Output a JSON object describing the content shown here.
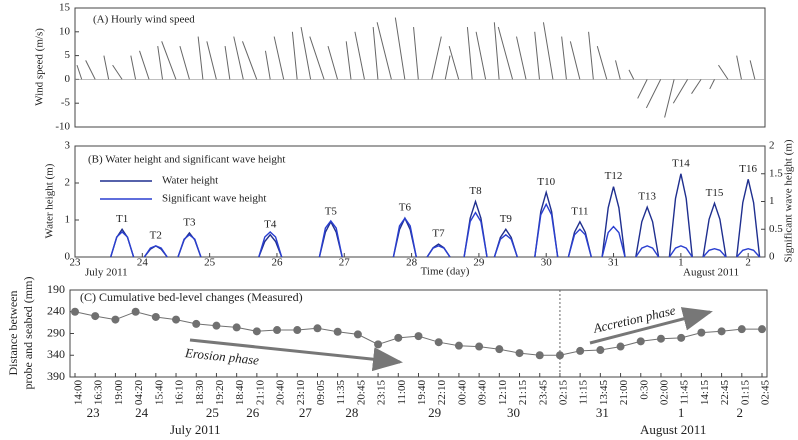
{
  "chart_data": [
    {
      "type": "stick",
      "title": "(A) Hourly wind speed",
      "ylabel": "Wind speed (m/s)",
      "x": [
        23.1,
        23.3,
        23.5,
        23.7,
        23.9,
        24.1,
        24.3,
        24.5,
        24.7,
        24.9,
        25.1,
        25.3,
        25.5,
        25.7,
        25.9,
        26.1,
        26.3,
        26.5,
        26.7,
        26.9,
        27.1,
        27.3,
        27.5,
        27.7,
        27.9,
        28.1,
        28.3,
        28.5,
        28.7,
        28.9,
        29.1,
        29.3,
        29.5,
        29.7,
        29.9,
        30.1,
        30.3,
        30.5,
        30.7,
        30.9,
        31.1,
        31.3,
        31.5,
        31.7,
        31.9,
        32.1,
        32.3,
        32.5,
        32.7,
        32.9,
        33.1
      ],
      "u": [
        -1,
        -2,
        -1,
        -2,
        -1,
        -2,
        -1,
        -3,
        -2,
        -1,
        -2,
        -1,
        -2,
        -3,
        -1,
        -2,
        -1,
        -2,
        -3,
        -2,
        -1,
        -2,
        -1,
        -3,
        -2,
        -1,
        2,
        1,
        -2,
        -1,
        -2,
        -1,
        -3,
        -2,
        -1,
        -2,
        -1,
        -2,
        -1,
        -2,
        -1,
        -1,
        -2,
        -3,
        -2,
        -3,
        -2,
        -1,
        -2,
        -1,
        -1
      ],
      "v": [
        3,
        4,
        5,
        3,
        5,
        6,
        7,
        8,
        7,
        9,
        8,
        7,
        9,
        8,
        6,
        9,
        10,
        11,
        9,
        7,
        8,
        10,
        11,
        12,
        13,
        11,
        9,
        5,
        7,
        11,
        10,
        12,
        11,
        9,
        10,
        12,
        9,
        8,
        10,
        7,
        4,
        2,
        -4,
        -6,
        -8,
        -5,
        -3,
        -2,
        3,
        5,
        4
      ],
      "color": "#666666",
      "xlim": [
        23,
        33.25
      ],
      "ylim": [
        -10,
        15
      ],
      "yticks": [
        -10,
        -5,
        0,
        5,
        10,
        15
      ]
    },
    {
      "type": "line",
      "title": "(B) Water height and significant wave height",
      "ylabel": "Water height (m)",
      "y2label": "Significant wave height (m)",
      "xlabel": "Time (day)",
      "month_labels": [
        "July 2011",
        "August 2011"
      ],
      "x": [
        23.53,
        23.62,
        23.7,
        23.78,
        23.87,
        23.95,
        24.03,
        24.12,
        24.2,
        24.28,
        24.37,
        24.45,
        24.53,
        24.62,
        24.7,
        24.78,
        24.87,
        24.95,
        25.73,
        25.82,
        25.9,
        25.98,
        26.07,
        26.15,
        26.63,
        26.72,
        26.8,
        26.88,
        26.97,
        27.05,
        27.73,
        27.82,
        27.9,
        27.98,
        28.07,
        28.15,
        28.23,
        28.32,
        28.4,
        28.48,
        28.57,
        28.65,
        28.78,
        28.87,
        28.95,
        29.03,
        29.12,
        29.2,
        29.23,
        29.32,
        29.4,
        29.48,
        29.57,
        29.65,
        29.83,
        29.92,
        30,
        30.08,
        30.17,
        30.25,
        30.33,
        30.42,
        30.5,
        30.58,
        30.67,
        30.75,
        30.83,
        30.92,
        31,
        31.08,
        31.17,
        31.25,
        31.33,
        31.42,
        31.5,
        31.58,
        31.67,
        31.75,
        31.83,
        31.92,
        32,
        32.08,
        32.17,
        32.25,
        32.33,
        32.42,
        32.5,
        32.58,
        32.67,
        32.75,
        32.83,
        32.92,
        33,
        33.08,
        33.17
      ],
      "series": [
        {
          "name": "Water height",
          "color": "#1f2f8f",
          "values": [
            0,
            0.53,
            0.75,
            0.53,
            0,
            null,
            0,
            0.21,
            0.3,
            0.21,
            0,
            null,
            0,
            0.46,
            0.65,
            0.46,
            0,
            null,
            0,
            0.42,
            0.6,
            0.42,
            0,
            null,
            0,
            0.67,
            0.95,
            0.67,
            0,
            null,
            0,
            0.74,
            1.05,
            0.74,
            0,
            null,
            0,
            0.25,
            0.35,
            0.25,
            0,
            null,
            0,
            1.05,
            1.5,
            1.05,
            0,
            null,
            0,
            0.53,
            0.75,
            0.53,
            0,
            null,
            0,
            1.23,
            1.75,
            1.23,
            0,
            null,
            0,
            0.67,
            0.95,
            0.67,
            0,
            null,
            0,
            1.33,
            1.9,
            1.33,
            0,
            null,
            0,
            0.95,
            1.35,
            0.95,
            0,
            null,
            0,
            1.58,
            2.25,
            1.58,
            0,
            null,
            0,
            1.02,
            1.45,
            1.02,
            0,
            null,
            0,
            1.47,
            2.1,
            1.47,
            0
          ]
        },
        {
          "name": "Significant wave height",
          "color": "#2a3fd0",
          "axis": "y2",
          "values": [
            0,
            0.36,
            0.45,
            0.36,
            0,
            null,
            0,
            0.16,
            0.2,
            0.16,
            0,
            null,
            0,
            0.32,
            0.4,
            0.32,
            0,
            null,
            0,
            0.36,
            0.45,
            0.36,
            0,
            null,
            0,
            0.52,
            0.65,
            0.52,
            0,
            null,
            0,
            0.56,
            0.7,
            0.56,
            0,
            null,
            0,
            0.16,
            0.2,
            0.16,
            0,
            null,
            0,
            0.64,
            0.8,
            0.64,
            0,
            null,
            0,
            0.32,
            0.4,
            0.32,
            0,
            null,
            0,
            0.76,
            0.95,
            0.76,
            0,
            null,
            0,
            0.4,
            0.5,
            0.4,
            0,
            null,
            0,
            0.44,
            0.55,
            0.44,
            0,
            null,
            0,
            0.16,
            0.2,
            0.16,
            0,
            null,
            0,
            0.16,
            0.2,
            0.16,
            0,
            null,
            0,
            0.12,
            0.15,
            0.12,
            0,
            null,
            0,
            0.12,
            0.15,
            0.12,
            0
          ]
        }
      ],
      "tide_labels": [
        "T1",
        "T2",
        "T3",
        "T4",
        "T5",
        "T6",
        "T7",
        "T8",
        "T9",
        "T10",
        "T11",
        "T12",
        "T13",
        "T14",
        "T15",
        "T16"
      ],
      "xlim": [
        23,
        33.25
      ],
      "xticks": [
        23,
        24,
        25,
        26,
        27,
        28,
        29,
        30,
        31,
        {
          "value": 32,
          "label": "1"
        },
        {
          "value": 33,
          "label": "2"
        }
      ],
      "ylim": [
        0,
        3
      ],
      "yticks": [
        0,
        1,
        2,
        3
      ],
      "y2lim": [
        0,
        2
      ],
      "y2ticks": [
        0,
        0.5,
        1,
        1.5,
        2
      ]
    },
    {
      "type": "line",
      "markers": true,
      "title": "(C) Cumulative bed-level changes (Measured)",
      "ylabel": [
        "Distance between",
        "probe and seabed (mm)"
      ],
      "annotations": [
        "Erosion phase",
        "Accretion phase"
      ],
      "month_labels": [
        "July 2011",
        "August 2011"
      ],
      "categories": [
        "14:00",
        "16:30",
        "19:00",
        "04:20",
        "15:40",
        "16:10",
        "18:30",
        "19:20",
        "18:40",
        "21:10",
        "20:40",
        "23:10",
        "09:05",
        "11:35",
        "20:45",
        "23:15",
        "11:00",
        "19:40",
        "22:10",
        "00:40",
        "09:40",
        "12:10",
        "21:15",
        "23:45",
        "02:15",
        "11:15",
        "13:45",
        "21:00",
        "0:30",
        "02:00",
        "11:45",
        "14:15",
        "22:45",
        "01:15",
        "02:45"
      ],
      "values": [
        240,
        250,
        258,
        240,
        252,
        258,
        268,
        272,
        276,
        285,
        282,
        282,
        278,
        286,
        292,
        315,
        300,
        296,
        310,
        318,
        320,
        326,
        335,
        340,
        340,
        330,
        328,
        320,
        308,
        302,
        300,
        288,
        285,
        280,
        280
      ],
      "color": "#707070",
      "phase_boundary": 24,
      "xticks2": [
        {
          "value": 0.9,
          "label": "23"
        },
        {
          "value": 3.3,
          "label": "24"
        },
        {
          "value": 6.8,
          "label": "25"
        },
        {
          "value": 8.8,
          "label": "26"
        },
        {
          "value": 11.4,
          "label": "27"
        },
        {
          "value": 13.7,
          "label": "28"
        },
        {
          "value": 17.8,
          "label": "29"
        },
        {
          "value": 21.7,
          "label": "30"
        },
        {
          "value": 26.1,
          "label": "31"
        },
        {
          "value": 30,
          "label": "1"
        },
        {
          "value": 32.9,
          "label": "2"
        }
      ],
      "ylim": [
        390,
        190
      ],
      "yticks": [
        190,
        240,
        290,
        340,
        390
      ]
    }
  ]
}
